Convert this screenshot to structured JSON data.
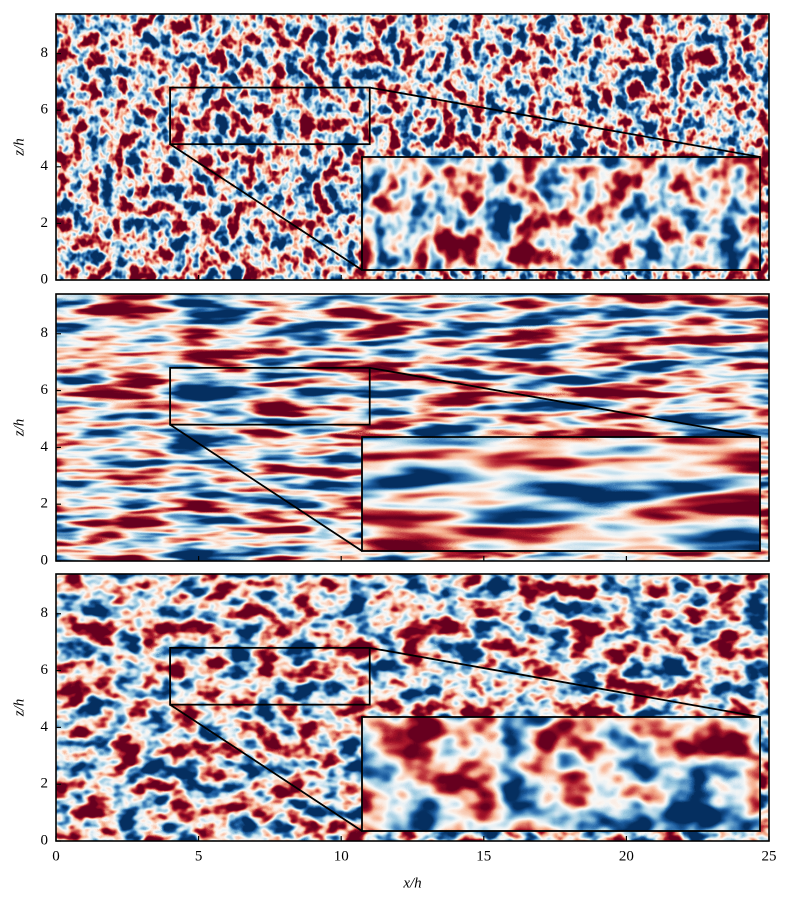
{
  "chart_data": [
    {
      "type": "field",
      "ylabel": "z/h",
      "xlim": [
        0,
        25
      ],
      "ylim": [
        0,
        9.4
      ],
      "xticks": [
        0,
        5,
        10,
        15,
        20,
        25
      ],
      "yticks": [
        0,
        2,
        4,
        6,
        8
      ],
      "show_xtick_labels": false,
      "zoom_box": {
        "x": [
          4,
          11
        ],
        "z": [
          4.8,
          6.8
        ]
      }
    },
    {
      "type": "field",
      "ylabel": "z/h",
      "xlim": [
        0,
        25
      ],
      "ylim": [
        0,
        9.4
      ],
      "xticks": [
        0,
        5,
        10,
        15,
        20,
        25
      ],
      "yticks": [
        0,
        2,
        4,
        6,
        8
      ],
      "show_xtick_labels": false,
      "zoom_box": {
        "x": [
          4,
          11
        ],
        "z": [
          4.8,
          6.8
        ]
      }
    },
    {
      "type": "field",
      "ylabel": "z/h",
      "xlabel": "x/h",
      "xlim": [
        0,
        25
      ],
      "ylim": [
        0,
        9.4
      ],
      "xticks": [
        0,
        5,
        10,
        15,
        20,
        25
      ],
      "yticks": [
        0,
        2,
        4,
        6,
        8
      ],
      "show_xtick_labels": true,
      "zoom_box": {
        "x": [
          4,
          11
        ],
        "z": [
          4.8,
          6.8
        ]
      }
    }
  ]
}
